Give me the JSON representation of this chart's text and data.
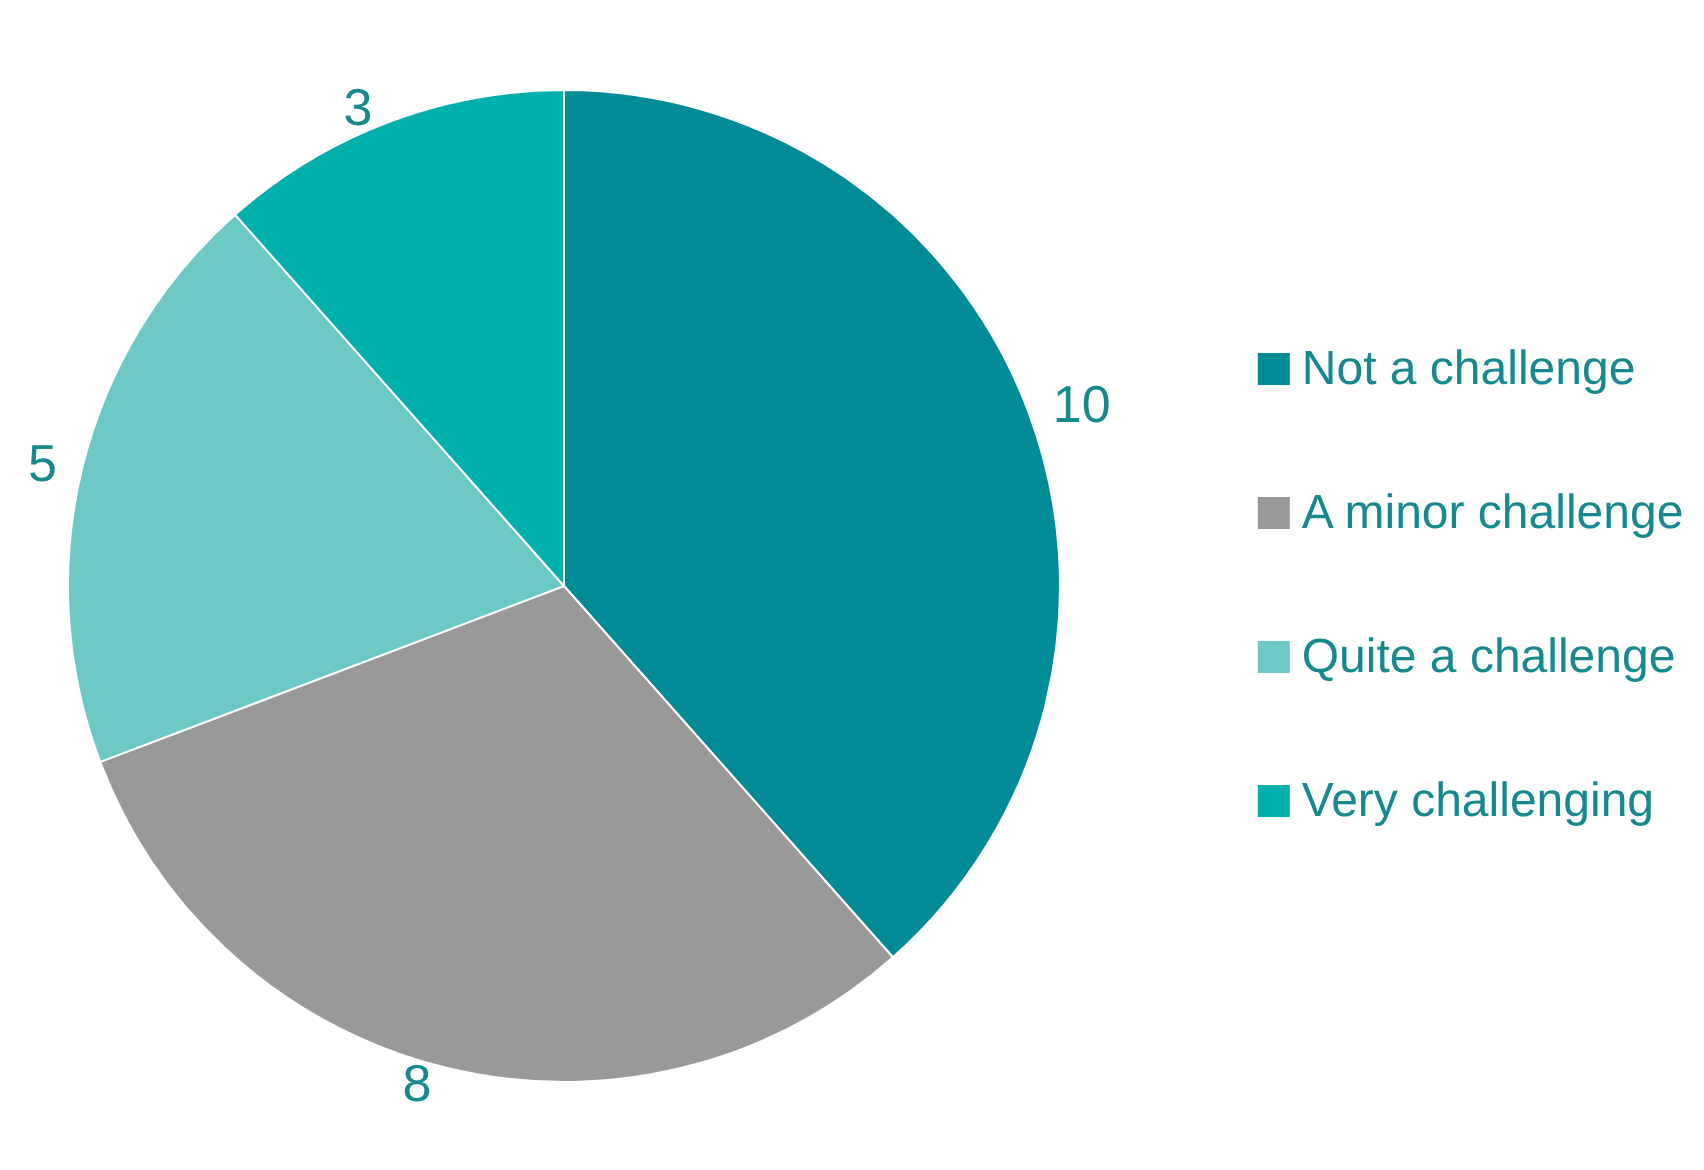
{
  "chart_data": {
    "type": "pie",
    "categories": [
      "Not a challenge",
      "A minor challenge",
      "Quite a challenge",
      "Very challenging"
    ],
    "values": [
      10,
      8,
      5,
      3
    ],
    "colors": [
      "#008b96",
      "#999999",
      "#6cc8c4",
      "#00b0ad"
    ],
    "data_labels": true,
    "legend": "right"
  }
}
